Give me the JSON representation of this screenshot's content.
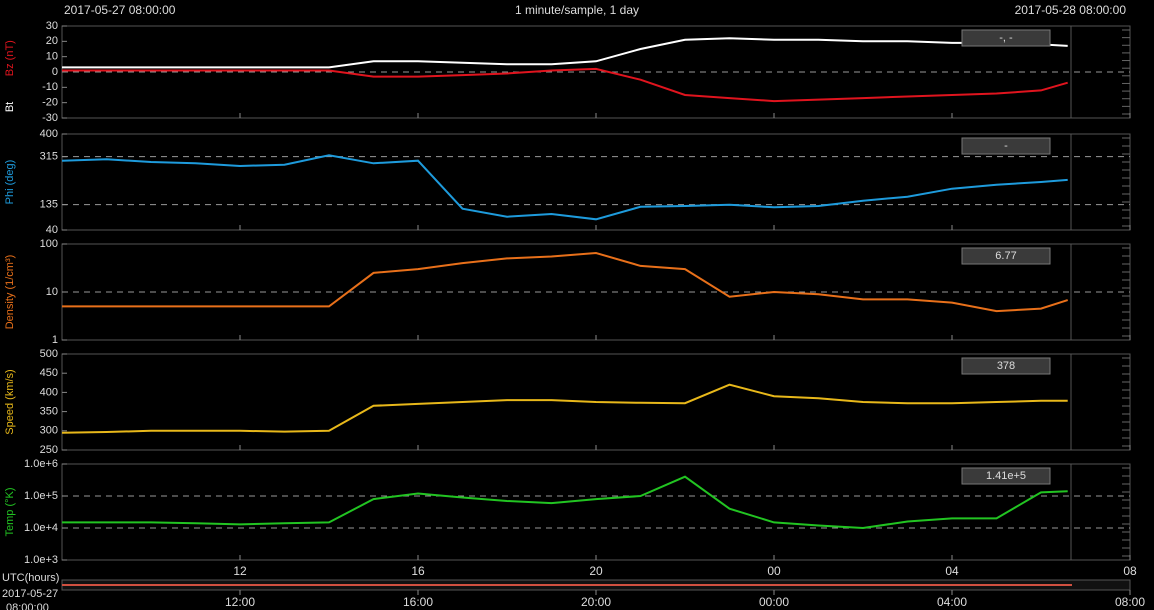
{
  "header": {
    "start": "2017-05-27 08:00:00",
    "title": "1 minute/sample,  1 day",
    "end": "2017-05-28 08:00:00"
  },
  "xaxis": {
    "xlim": [
      0,
      24
    ],
    "xticks": [
      {
        "value": 4,
        "label": "12"
      },
      {
        "value": 8,
        "label": "16"
      },
      {
        "value": 12,
        "label": "20"
      },
      {
        "value": 16,
        "label": "00"
      },
      {
        "value": 20,
        "label": "04"
      },
      {
        "value": 24,
        "label": "08"
      }
    ]
  },
  "timeline": {
    "axis_label": "UTC(hours)",
    "date": "2017-05-27",
    "time": "08:00:00",
    "ticks": [
      {
        "value": 4,
        "label": "12:00"
      },
      {
        "value": 8,
        "label": "16:00"
      },
      {
        "value": 12,
        "label": "20:00"
      },
      {
        "value": 16,
        "label": "00:00"
      },
      {
        "value": 20,
        "label": "04:00"
      },
      {
        "value": 24,
        "label": "08:00"
      }
    ]
  },
  "chart_data": [
    {
      "type": "line",
      "readout": "-, -",
      "xlim": [
        0,
        24
      ],
      "ylim": [
        -30,
        30
      ],
      "yticks": [
        -30,
        -20,
        -10,
        0,
        10,
        20,
        30
      ],
      "dashed": [
        0
      ],
      "x": [
        0,
        1,
        2,
        3,
        4,
        5,
        6,
        7,
        8,
        9,
        10,
        11,
        12,
        13,
        14,
        15,
        16,
        17,
        18,
        19,
        20,
        21,
        22,
        22.6
      ],
      "series": [
        {
          "name": "Bz (nT)",
          "color": "#e0141e",
          "values": [
            1,
            1,
            1,
            1,
            1,
            1,
            1,
            -3,
            -3,
            -2,
            -1,
            1,
            2,
            -5,
            -15,
            -17,
            -19,
            -18,
            -17,
            -16,
            -15,
            -14,
            -12,
            -7
          ]
        },
        {
          "name": "Bt",
          "color": "#ffffff",
          "values": [
            3,
            3,
            3,
            3,
            3,
            3,
            3,
            7,
            7,
            6,
            5,
            5,
            7,
            15,
            21,
            22,
            21,
            21,
            20,
            20,
            19,
            19,
            18,
            17
          ]
        }
      ]
    },
    {
      "type": "line",
      "readout": "-",
      "xlim": [
        0,
        24
      ],
      "ylim": [
        40,
        400
      ],
      "yticks": [
        40,
        135,
        315,
        400
      ],
      "dashed": [
        135,
        315
      ],
      "x": [
        0,
        1,
        2,
        3,
        4,
        5,
        6,
        7,
        8,
        9,
        10,
        11,
        12,
        13,
        14,
        15,
        16,
        17,
        18,
        19,
        20,
        21,
        22,
        22.6
      ],
      "series": [
        {
          "name": "Phi (deg)",
          "color": "#1e9bdc",
          "values": [
            300,
            305,
            295,
            290,
            280,
            285,
            320,
            290,
            300,
            120,
            90,
            100,
            80,
            127,
            130,
            135,
            125,
            130,
            150,
            165,
            195,
            210,
            220,
            228
          ]
        }
      ]
    },
    {
      "type": "line",
      "yscale": "log",
      "readout": "6.77",
      "xlim": [
        0,
        24
      ],
      "ylim": [
        1,
        100
      ],
      "yticks": [
        1,
        10,
        100
      ],
      "dashed": [
        10
      ],
      "x": [
        0,
        1,
        2,
        3,
        4,
        5,
        6,
        7,
        8,
        9,
        10,
        11,
        12,
        13,
        14,
        15,
        16,
        17,
        18,
        19,
        20,
        21,
        22,
        22.6
      ],
      "series": [
        {
          "name": "Density (1/cm³)",
          "color": "#e8701a",
          "values": [
            5,
            5,
            5,
            5,
            5,
            5,
            5,
            25,
            30,
            40,
            50,
            55,
            65,
            35,
            30,
            8,
            10,
            9,
            7,
            7,
            6,
            4,
            4.5,
            6.77
          ]
        }
      ]
    },
    {
      "type": "line",
      "readout": "378",
      "xlim": [
        0,
        24
      ],
      "ylim": [
        250,
        500
      ],
      "yticks": [
        250,
        300,
        350,
        400,
        450,
        500
      ],
      "dashed": [],
      "x": [
        0,
        1,
        2,
        3,
        4,
        5,
        6,
        7,
        8,
        9,
        10,
        11,
        12,
        13,
        14,
        15,
        16,
        17,
        18,
        19,
        20,
        21,
        22,
        22.6
      ],
      "series": [
        {
          "name": "Speed (km/s)",
          "color": "#e8b81a",
          "values": [
            295,
            297,
            300,
            300,
            300,
            298,
            300,
            365,
            370,
            375,
            380,
            380,
            375,
            373,
            372,
            420,
            390,
            385,
            375,
            372,
            372,
            375,
            378,
            378
          ]
        }
      ]
    },
    {
      "type": "line",
      "yscale": "log",
      "readout": "1.41e+5",
      "xlim": [
        0,
        24
      ],
      "ylim": [
        1000,
        1000000
      ],
      "yticks": [
        {
          "value": 1000,
          "label": "1.0e+3"
        },
        {
          "value": 10000,
          "label": "1.0e+4"
        },
        {
          "value": 100000,
          "label": "1.0e+5"
        },
        {
          "value": 1000000,
          "label": "1.0e+6"
        }
      ],
      "dashed": [
        10000,
        100000
      ],
      "x": [
        0,
        1,
        2,
        3,
        4,
        5,
        6,
        7,
        8,
        9,
        10,
        11,
        12,
        13,
        14,
        15,
        16,
        17,
        18,
        19,
        20,
        21,
        22,
        22.6
      ],
      "series": [
        {
          "name": "Temp (°K)",
          "color": "#22c422",
          "values": [
            15000,
            15000,
            15000,
            14000,
            13000,
            14000,
            15000,
            80000,
            120000,
            90000,
            70000,
            60000,
            80000,
            100000,
            400000,
            40000,
            15000,
            12000,
            10000,
            16000,
            20000,
            20000,
            130000,
            141000
          ]
        }
      ]
    }
  ]
}
